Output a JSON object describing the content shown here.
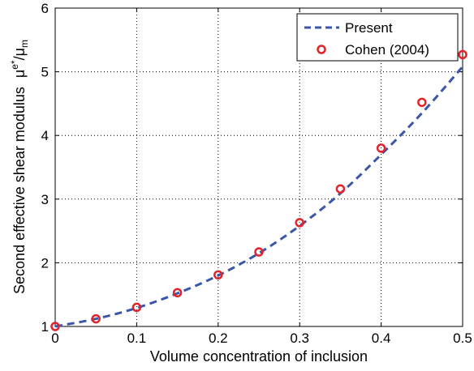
{
  "chart_data": {
    "type": "line",
    "xlabel": "Volume concentration of inclusion",
    "ylabel_main": "Second effective shear modulus",
    "ylabel_math": "μe*/μm",
    "xlim": [
      0,
      0.5
    ],
    "ylim": [
      1,
      6
    ],
    "x_ticks": [
      "0",
      "0.1",
      "0.2",
      "0.3",
      "0.4",
      "0.5"
    ],
    "y_ticks": [
      "1",
      "2",
      "3",
      "4",
      "5",
      "6"
    ],
    "grid": true,
    "legend_position": "top-right",
    "series": [
      {
        "name": "Present",
        "style": "dashed-line",
        "color": "#3a56a8",
        "x": [
          0,
          0.05,
          0.1,
          0.15,
          0.2,
          0.25,
          0.3,
          0.35,
          0.4,
          0.45,
          0.5
        ],
        "y": [
          1.0,
          1.12,
          1.29,
          1.52,
          1.8,
          2.15,
          2.58,
          3.09,
          3.7,
          4.35,
          5.08
        ]
      },
      {
        "name": "Cohen (2004)",
        "style": "circle-markers",
        "color": "#e2232a",
        "x": [
          0,
          0.05,
          0.1,
          0.15,
          0.2,
          0.25,
          0.3,
          0.35,
          0.4,
          0.45,
          0.5
        ],
        "y": [
          1.0,
          1.12,
          1.3,
          1.53,
          1.81,
          2.17,
          2.63,
          3.16,
          3.8,
          4.52,
          5.27
        ]
      }
    ]
  }
}
